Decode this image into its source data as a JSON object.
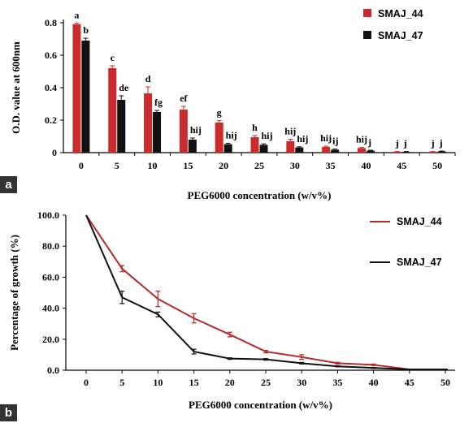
{
  "panels": [
    {
      "tag": "a"
    },
    {
      "tag": "b"
    }
  ],
  "chart_data": [
    {
      "type": "bar",
      "xlabel": "PEG6000 concentration (w/v%)",
      "ylabel": "O.D. value at 600nm",
      "ylim": [
        0,
        0.8
      ],
      "yticks": [
        "0",
        "0.2",
        "0.4",
        "0.6",
        "0.8"
      ],
      "categories": [
        "0",
        "5",
        "10",
        "15",
        "20",
        "25",
        "30",
        "35",
        "40",
        "45",
        "50"
      ],
      "legend_position": "top-right",
      "series": [
        {
          "name": "SMAJ_44",
          "color": "#cc2b2b",
          "values": [
            0.79,
            0.52,
            0.365,
            0.265,
            0.185,
            0.095,
            0.07,
            0.035,
            0.028,
            0.005,
            0.005
          ],
          "errors": [
            0.008,
            0.015,
            0.04,
            0.02,
            0.012,
            0.01,
            0.012,
            0.005,
            0.004,
            0.002,
            0.002
          ],
          "letters": [
            "a",
            "c",
            "d",
            "ef",
            "g",
            "h",
            "hij",
            "hij",
            "hij",
            "j",
            "j"
          ]
        },
        {
          "name": "SMAJ_47",
          "color": "#111111",
          "values": [
            0.69,
            0.325,
            0.25,
            0.08,
            0.052,
            0.048,
            0.032,
            0.018,
            0.012,
            0.005,
            0.008
          ],
          "errors": [
            0.015,
            0.025,
            0.01,
            0.01,
            0.006,
            0.006,
            0.004,
            0.004,
            0.003,
            0.002,
            0.002
          ],
          "letters": [
            "b",
            "de",
            "fg",
            "hij",
            "hij",
            "hij",
            "hij",
            "ij",
            "j",
            "j",
            "j"
          ]
        }
      ]
    },
    {
      "type": "line",
      "xlabel": "PEG6000 concentration (w/v%)",
      "ylabel": "Percentage of growth (%)",
      "ylim": [
        0,
        100
      ],
      "yticks": [
        "0.0",
        "20.0",
        "40.0",
        "60.0",
        "80.0",
        "100.0"
      ],
      "x": [
        "0",
        "5",
        "10",
        "15",
        "20",
        "25",
        "30",
        "35",
        "40",
        "45",
        "50"
      ],
      "legend_position": "right",
      "series": [
        {
          "name": "SMAJ_44",
          "color": "#b52a2a",
          "values": [
            100,
            65.5,
            46,
            33.5,
            23,
            12,
            8.5,
            4.5,
            3.5,
            0.5,
            0.5
          ],
          "errors": [
            0,
            2,
            5,
            3,
            1.5,
            0.8,
            1.5,
            0.6,
            0.5,
            0.2,
            0.2
          ]
        },
        {
          "name": "SMAJ_47",
          "color": "#111111",
          "values": [
            100,
            47,
            36,
            12,
            7.5,
            7,
            4.5,
            2.5,
            1.5,
            0.5,
            0.5
          ],
          "errors": [
            0,
            4,
            1.5,
            1.5,
            0.5,
            0.5,
            0.5,
            0.3,
            0.3,
            0.2,
            0.2
          ]
        }
      ]
    }
  ]
}
